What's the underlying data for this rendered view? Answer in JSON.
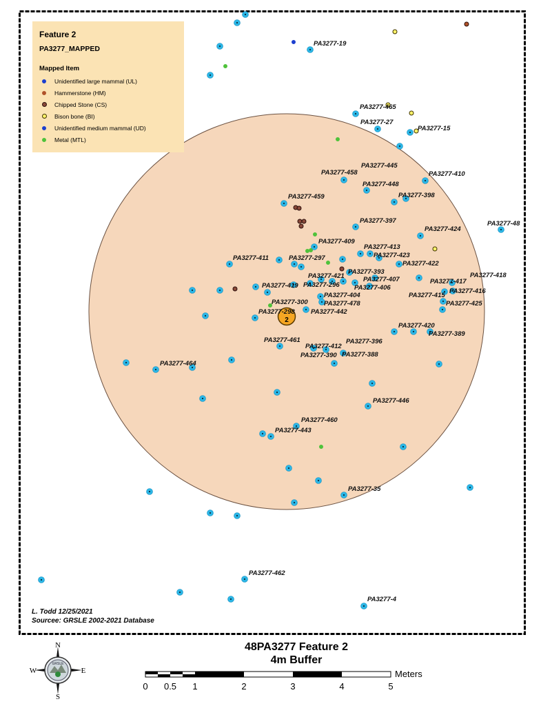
{
  "legend": {
    "title": "Feature 2",
    "subtitle": "PA3277_MAPPED",
    "heading": "Mapped Item",
    "items": [
      {
        "label": "Unidentified large mammal (UL)",
        "color": "#1c3fcf",
        "border": "#1c3fcf",
        "size": 6
      },
      {
        "label": "Hammerstone (HM)",
        "color": "#b0522a",
        "border": "#b0522a",
        "size": 6
      },
      {
        "label": "Chipped Stone (CS)",
        "color": "#8a4a3a",
        "border": "#2a0e0a",
        "size": 7
      },
      {
        "label": "Bison bone (BI)",
        "color": "#fff36a",
        "border": "#3a3000",
        "size": 7
      },
      {
        "label": "Unidentified medium mammal (UD)",
        "color": "#1c3fcf",
        "border": "#1c3fcf",
        "size": 6
      },
      {
        "label": "Metal (MTL)",
        "color": "#4fc23b",
        "border": "#4fc23b",
        "size": 6
      }
    ]
  },
  "feature_marker": {
    "label": "2",
    "color": "#f5a623"
  },
  "buffer": {
    "fill": "#f6d7bb"
  },
  "point_color": "#2bb6e6",
  "point_labels": [
    "PA3277-19",
    "PA3277-465",
    "PA3277-27",
    "PA3277-15",
    "PA3277-445",
    "PA3277-458",
    "PA3277-410",
    "PA3277-448",
    "PA3277-398",
    "PA3277-459",
    "PA3277-397",
    "PA3277-424",
    "PA3277-48",
    "PA3277-409",
    "PA3277-413",
    "PA3277-423",
    "PA3277-411",
    "PA3277-297",
    "PA3277-422",
    "PA3277-393",
    "PA3277-421",
    "PA3277-407",
    "PA3277-418",
    "PA3277-419",
    "PA3277-296",
    "PA3277-406",
    "PA3277-417",
    "PA3277-416",
    "PA3277-404",
    "PA3277-415",
    "PA3277-300",
    "PA3277-478",
    "PA3277-425",
    "PA3277-298",
    "PA3277-442",
    "PA3277-420",
    "PA3277-389",
    "PA3277-461",
    "PA3277-396",
    "PA3277-412",
    "PA3277-390",
    "PA3277-388",
    "PA3277-464",
    "PA3277-446",
    "PA3277-460",
    "PA3277-443",
    "PA3277-35",
    "PA3277-462",
    "PA3277-4"
  ],
  "credit": {
    "author": "L. Todd 12/25/2021",
    "source": "Sourcee: GRSLE 2002-2021 Database"
  },
  "map_title": {
    "line1": "48PA3277 Feature 2",
    "line2": "4m Buffer"
  },
  "compass": {
    "n": "N",
    "s": "S",
    "e": "E",
    "w": "W",
    "emblem": "GRSLE"
  },
  "scale": {
    "unit": "Meters",
    "ticks": [
      "0",
      "0.5",
      "1",
      "2",
      "3",
      "4",
      "5"
    ]
  }
}
